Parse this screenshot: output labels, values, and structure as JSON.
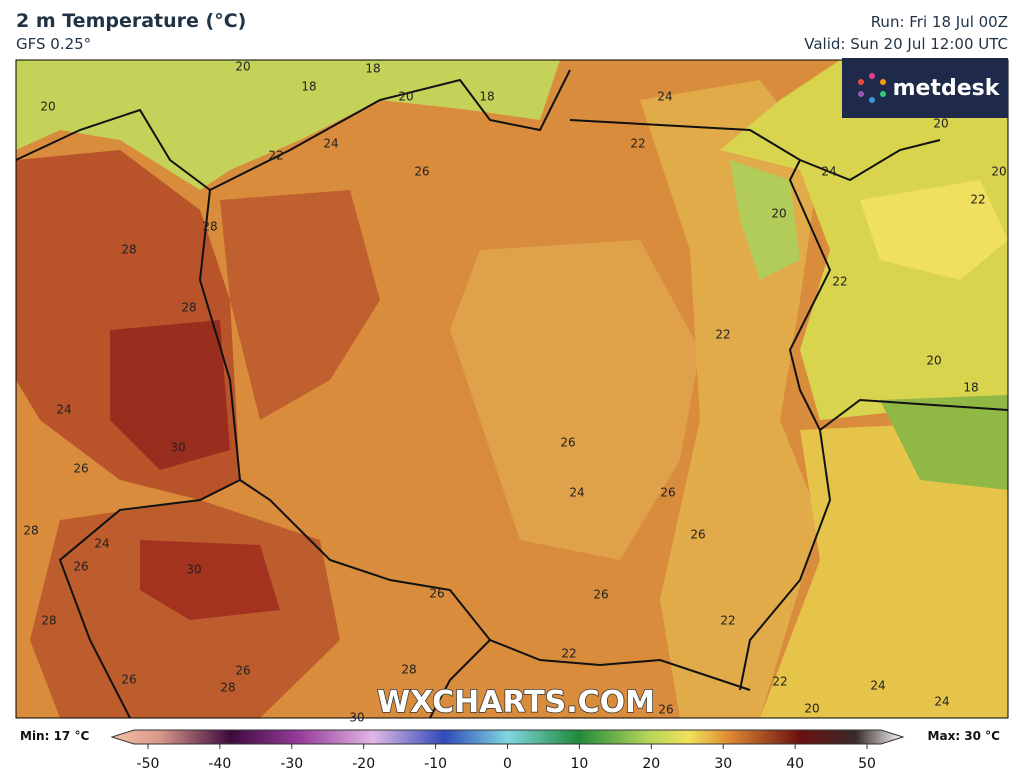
{
  "header": {
    "title": "2 m Temperature (°C)",
    "subtitle": "GFS 0.25°",
    "run": "Run: Fri 18 Jul 00Z",
    "valid": "Valid: Sun 20 Jul 12:00 UTC"
  },
  "logo": "metdesk",
  "watermark": "WXCHARTS.COM",
  "contour_labels": [
    "20",
    "18",
    "18",
    "20",
    "18",
    "20",
    "24",
    "20",
    "24",
    "22",
    "22",
    "26",
    "24",
    "20",
    "22",
    "20",
    "28",
    "28",
    "22",
    "28",
    "22",
    "20",
    "18",
    "24",
    "30",
    "26",
    "26",
    "24",
    "26",
    "28",
    "26",
    "24",
    "26",
    "30",
    "26",
    "26",
    "28",
    "22",
    "22",
    "26",
    "28",
    "26",
    "28",
    "22",
    "24",
    "24",
    "20",
    "30",
    "26"
  ],
  "legend": {
    "min": "Min: 17 °C",
    "max": "Max: 30 °C",
    "lim": [
      -55,
      55
    ],
    "ticks": [
      -50,
      -40,
      -30,
      -20,
      -10,
      0,
      10,
      20,
      30,
      40,
      50
    ]
  }
}
